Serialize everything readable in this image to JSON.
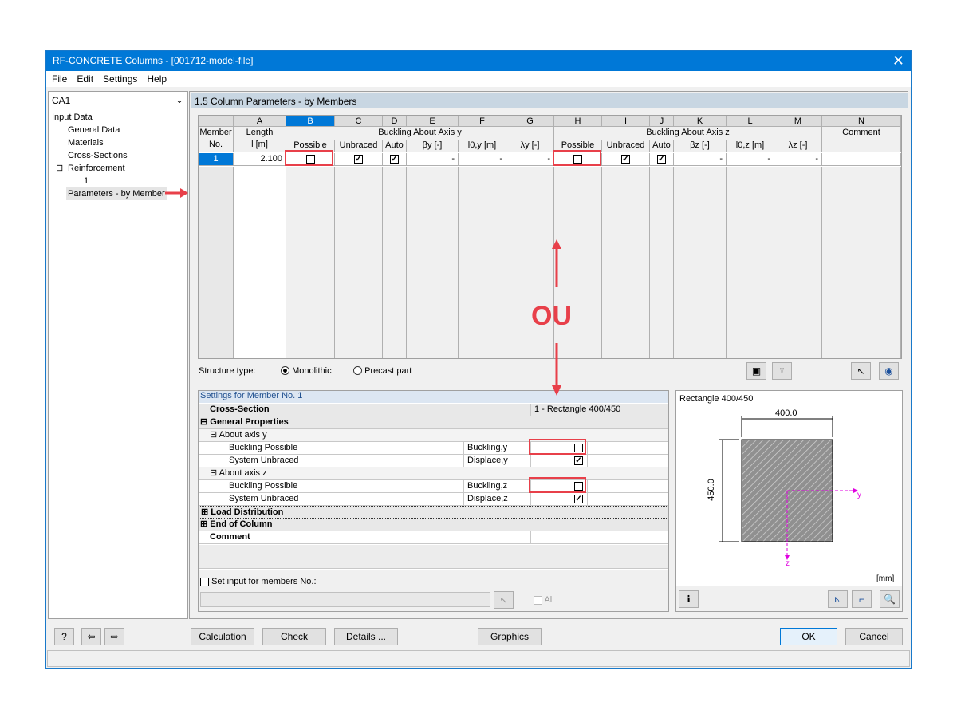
{
  "window": {
    "title": "RF-CONCRETE Columns - [001712-model-file]",
    "close_icon": "close-icon"
  },
  "menu": [
    "File",
    "Edit",
    "Settings",
    "Help"
  ],
  "sidebar": {
    "case": "CA1",
    "root": "Input Data",
    "items": [
      "General Data",
      "Materials",
      "Cross-Sections",
      "Reinforcement",
      "1",
      "Parameters - by Member"
    ]
  },
  "main": {
    "title": "1.5 Column Parameters - by Members"
  },
  "table": {
    "letters": [
      "A",
      "B",
      "C",
      "D",
      "E",
      "F",
      "G",
      "H",
      "I",
      "J",
      "K",
      "L",
      "M",
      "N"
    ],
    "member_header": [
      "Member",
      "No."
    ],
    "length_header": [
      "Length",
      "l [m]"
    ],
    "group_y": "Buckling About Axis y",
    "group_z": "Buckling About Axis z",
    "comment": "Comment",
    "sub_y": [
      "Possible",
      "Unbraced",
      "Auto",
      "βy [-]",
      "l0,y [m]",
      "λy [-]"
    ],
    "sub_z": [
      "Possible",
      "Unbraced",
      "Auto",
      "βz [-]",
      "l0,z [m]",
      "λz [-]"
    ],
    "rows": [
      {
        "no": "1",
        "length": "2.100",
        "y_possible": false,
        "y_unbraced": true,
        "y_auto": true,
        "beta_y": "-",
        "l0_y": "-",
        "lambda_y": "-",
        "z_possible": false,
        "z_unbraced": true,
        "z_auto": true,
        "beta_z": "-",
        "l0_z": "-",
        "lambda_z": "-",
        "comment": ""
      }
    ]
  },
  "structure": {
    "label": "Structure type:",
    "options": [
      "Monolithic",
      "Precast part"
    ],
    "selected": "Monolithic"
  },
  "annotation": {
    "text": "OU",
    "color": "#e8404a"
  },
  "settings": {
    "title": "Settings for Member No. 1",
    "cross_section_label": "Cross-Section",
    "cross_section_value": "1 - Rectangle 400/450",
    "general": "General Properties",
    "axis_y": "About axis y",
    "axis_z": "About axis z",
    "rows": [
      {
        "label": "Buckling Possible",
        "sym": "Buckling,y",
        "checked": false
      },
      {
        "label": "System Unbraced",
        "sym": "Displace,y",
        "checked": true
      },
      {
        "label": "Buckling Possible",
        "sym": "Buckling,z",
        "checked": false
      },
      {
        "label": "System Unbraced",
        "sym": "Displace,z",
        "checked": true
      }
    ],
    "load": "Load Distribution",
    "end": "End of Column",
    "comment": "Comment",
    "set_input": "Set input for members No.:",
    "all": "All"
  },
  "preview": {
    "title": "Rectangle 400/450",
    "width": "400.0",
    "height": "450.0",
    "axis_y": "y",
    "axis_z": "z",
    "unit": "[mm]"
  },
  "buttons": {
    "calculation": "Calculation",
    "check": "Check",
    "details": "Details ...",
    "graphics": "Graphics",
    "ok": "OK",
    "cancel": "Cancel"
  }
}
